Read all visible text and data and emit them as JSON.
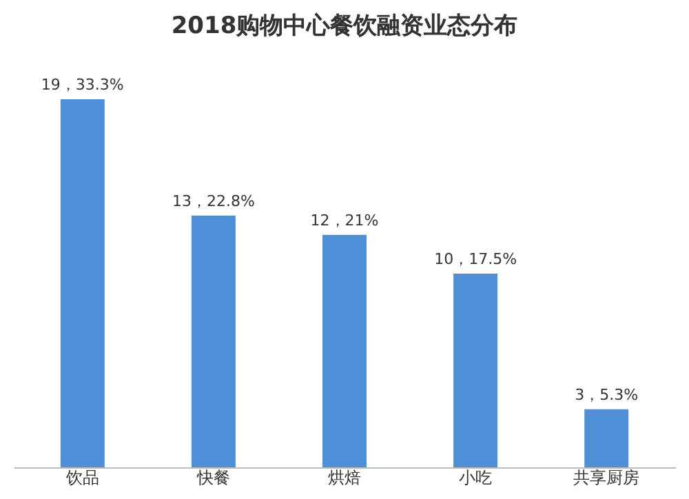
{
  "chart_data": {
    "type": "bar",
    "title": "2018购物中心餐饮融资业态分布",
    "categories": [
      "饮品",
      "快餐",
      "烘焙",
      "小吃",
      "共享厨房"
    ],
    "values": [
      19,
      13,
      12,
      10,
      3
    ],
    "value_labels": [
      "19，33.3%",
      "13，22.8%",
      "12，21%",
      "10，17.5%",
      "3，5.3%"
    ],
    "color": "#4f8fd8",
    "grid": false
  }
}
